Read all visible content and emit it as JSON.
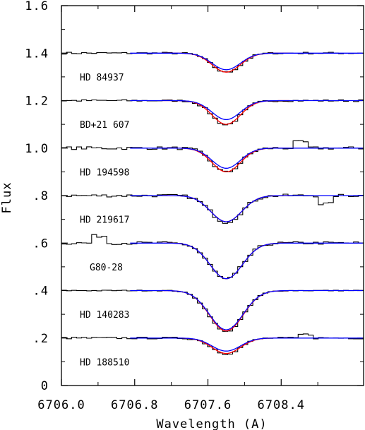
{
  "chart_data": {
    "type": "line",
    "xlabel": "Wavelength (A)",
    "ylabel": "Flux",
    "xlim": [
      6706.0,
      6709.3
    ],
    "ylim": [
      0,
      1.6
    ],
    "x_ticks": [
      6706.0,
      6706.8,
      6707.6,
      6708.4
    ],
    "x_tick_labels": [
      "6706.0",
      "6706.8",
      "6707.6",
      "6708.4"
    ],
    "y_ticks": [
      0,
      0.2,
      0.4,
      0.6,
      0.8,
      1.0,
      1.2,
      1.4,
      1.6
    ],
    "y_tick_labels": [
      "0",
      ".2",
      ".4",
      ".6",
      ".8",
      "1.0",
      "1.2",
      "1.4",
      "1.6"
    ],
    "grid": false,
    "line_center": 6707.8,
    "colors": {
      "observed": "#000000",
      "fit_red": "#ff0000",
      "fit_blue": "#0000ff"
    },
    "spectra": [
      {
        "name": "HD 84937",
        "continuum": 1.4,
        "depth_red": 0.08,
        "depth_blue": 0.07,
        "width": 0.22,
        "noise": 0.004,
        "spike": null
      },
      {
        "name": "BD+21 607",
        "continuum": 1.2,
        "depth_red": 0.1,
        "depth_blue": 0.08,
        "width": 0.22,
        "noise": 0.004,
        "spike": null
      },
      {
        "name": "HD 194598",
        "continuum": 1.0,
        "depth_red": 0.1,
        "depth_blue": 0.085,
        "width": 0.22,
        "noise": 0.006,
        "spike": [
          6708.6,
          0.025
        ]
      },
      {
        "name": "HD 219617",
        "continuum": 0.8,
        "depth_red": 0.11,
        "depth_blue": 0.11,
        "width": 0.24,
        "noise": 0.006,
        "spike": [
          6708.85,
          -0.035
        ]
      },
      {
        "name": "G80-28",
        "continuum": 0.6,
        "depth_red": 0.15,
        "depth_blue": 0.15,
        "width": 0.25,
        "noise": 0.006,
        "spike": [
          6706.4,
          0.03
        ]
      },
      {
        "name": "HD 140283",
        "continuum": 0.4,
        "depth_red": 0.17,
        "depth_blue": 0.165,
        "width": 0.26,
        "noise": 0.002,
        "spike": null
      },
      {
        "name": "HD 188510",
        "continuum": 0.2,
        "depth_red": 0.065,
        "depth_blue": 0.055,
        "width": 0.22,
        "noise": 0.004,
        "spike": [
          6708.65,
          0.015
        ]
      }
    ]
  }
}
